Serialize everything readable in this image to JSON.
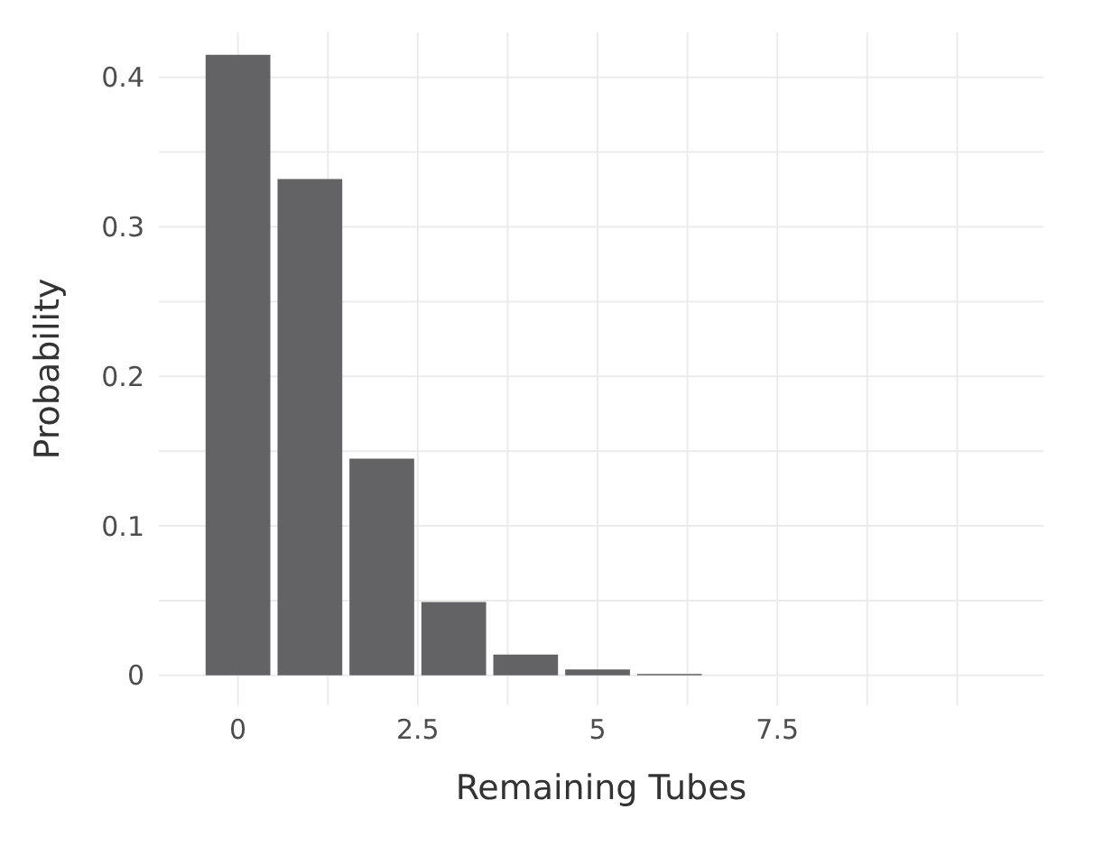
{
  "chart_data": {
    "type": "bar",
    "xlabel": "Remaining Tubes",
    "ylabel": "Probability",
    "x": [
      0,
      1,
      2,
      3,
      4,
      5,
      6
    ],
    "values": [
      0.415,
      0.332,
      0.145,
      0.049,
      0.014,
      0.004,
      0.001
    ],
    "color": "#636366",
    "xlim": [
      -1.1,
      11.2
    ],
    "xticks": [
      0,
      {
        "value": 1.25,
        "label": null
      },
      2.5,
      {
        "value": 3.75,
        "label": null
      },
      5,
      {
        "value": 6.25,
        "label": null
      },
      7.5,
      {
        "value": 8.75,
        "label": null
      },
      {
        "value": 10,
        "label": null
      }
    ],
    "ylim": [
      -0.02,
      0.43
    ],
    "yticks": [
      0,
      {
        "value": 0.05,
        "label": null
      },
      0.1,
      {
        "value": 0.15,
        "label": null
      },
      0.2,
      {
        "value": 0.25,
        "label": null
      },
      0.3,
      {
        "value": 0.35,
        "label": null
      },
      0.4
    ],
    "grid": true
  }
}
